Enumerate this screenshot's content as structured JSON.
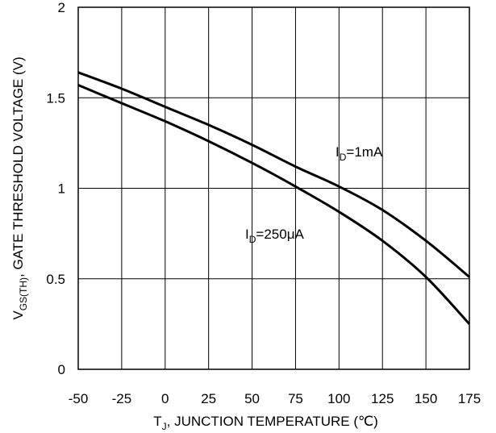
{
  "chart_data": {
    "type": "line",
    "xlabel": {
      "main": "T",
      "sub": "J",
      "rest": ", JUNCTION TEMPERATURE (℃)"
    },
    "ylabel": {
      "main": "V",
      "sub": "GS(TH)",
      "rest": ", GATE THRESHOLD VOLTAGE (V)"
    },
    "xlim": [
      -50,
      175
    ],
    "ylim": [
      0,
      2
    ],
    "x_ticks": [
      "-50",
      "-25",
      "0",
      "25",
      "50",
      "75",
      "100",
      "125",
      "150",
      "175"
    ],
    "y_ticks": [
      "0",
      "0.5",
      "1",
      "1.5",
      "2"
    ],
    "grid": true,
    "series": [
      {
        "name": {
          "main": "I",
          "sub": "D",
          "rest": "=1mA"
        },
        "x": [
          -50,
          -25,
          0,
          25,
          50,
          75,
          100,
          125,
          150,
          175
        ],
        "y": [
          1.64,
          1.55,
          1.45,
          1.35,
          1.24,
          1.12,
          1.01,
          0.88,
          0.71,
          0.51
        ]
      },
      {
        "name": {
          "main": "I",
          "sub": "D",
          "rest": "=250μA"
        },
        "x": [
          -50,
          -25,
          0,
          25,
          50,
          75,
          100,
          125,
          150,
          175
        ],
        "y": [
          1.57,
          1.47,
          1.37,
          1.26,
          1.14,
          1.01,
          0.87,
          0.71,
          0.51,
          0.25
        ]
      }
    ]
  }
}
